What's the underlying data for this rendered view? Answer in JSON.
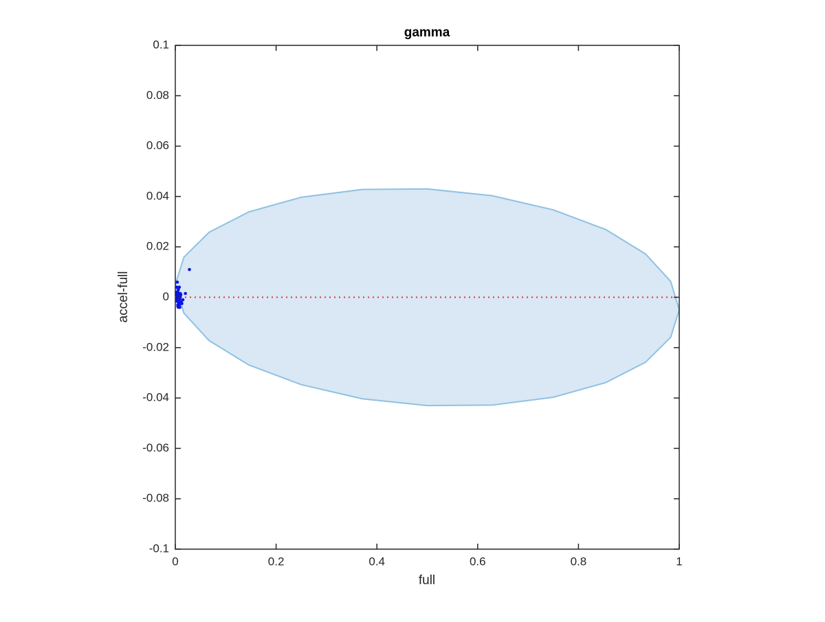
{
  "chart_data": {
    "type": "scatter",
    "title": "gamma",
    "x_label": "full",
    "y_label": "accel-full",
    "xlim": [
      0,
      1
    ],
    "ylim": [
      -0.1,
      0.1
    ],
    "xticks": [
      0,
      0.2,
      0.4,
      0.6,
      0.8,
      1
    ],
    "yticks": [
      -0.1,
      -0.08,
      -0.06,
      -0.04,
      -0.02,
      0,
      0.02,
      0.04,
      0.06,
      0.08,
      0.1
    ],
    "series": [
      {
        "type": "area",
        "color": "#8fc1e3",
        "fill": "#d9e8f4",
        "x": [
          1,
          0.983,
          0.933,
          0.854,
          0.75,
          0.629,
          0.5,
          0.371,
          0.25,
          0.146,
          0.067,
          0.017,
          0,
          0.017,
          0.067,
          0.146,
          0.25,
          0.371,
          0.5,
          0.629,
          0.75,
          0.854,
          0.933,
          0.983
        ],
        "y": [
          -0.005,
          0.0063,
          0.0172,
          0.0269,
          0.0347,
          0.0403,
          0.043,
          0.0428,
          0.0397,
          0.0339,
          0.0258,
          0.0159,
          0.005,
          -0.0063,
          -0.0172,
          -0.0269,
          -0.0347,
          -0.0403,
          -0.043,
          -0.0428,
          -0.0397,
          -0.0339,
          -0.0258,
          -0.0159
        ]
      },
      {
        "type": "line",
        "color": "#e8312f",
        "dotted": true,
        "x": [
          0,
          1
        ],
        "y": [
          0,
          0
        ]
      },
      {
        "type": "scatter",
        "color": "#0a14e6",
        "x": [
          0.028,
          0.003,
          0.004,
          0.005,
          0.006,
          0.002,
          0.003,
          0.004,
          0.007,
          0.008,
          0.005,
          0.006,
          0.009,
          0.01,
          0.012,
          0.015,
          0.02,
          0.004,
          0.003,
          0.006,
          0.008,
          0.01,
          0.013,
          0.005,
          0.007,
          0.009,
          0.002,
          0.011,
          0.004,
          0.006
        ],
        "y": [
          0.011,
          0.004,
          0.006,
          0.002,
          0.003,
          0.001,
          -0.001,
          0.0,
          -0.002,
          0.004,
          -0.003,
          -0.004,
          -0.001,
          0.0,
          -0.002,
          -0.001,
          0.0015,
          0.001,
          -0.0015,
          0.0015,
          -0.003,
          0.0015,
          -0.0025,
          -0.0035,
          0.0005,
          -0.004,
          0.002,
          0.001,
          -0.0005,
          -0.002
        ]
      }
    ]
  }
}
